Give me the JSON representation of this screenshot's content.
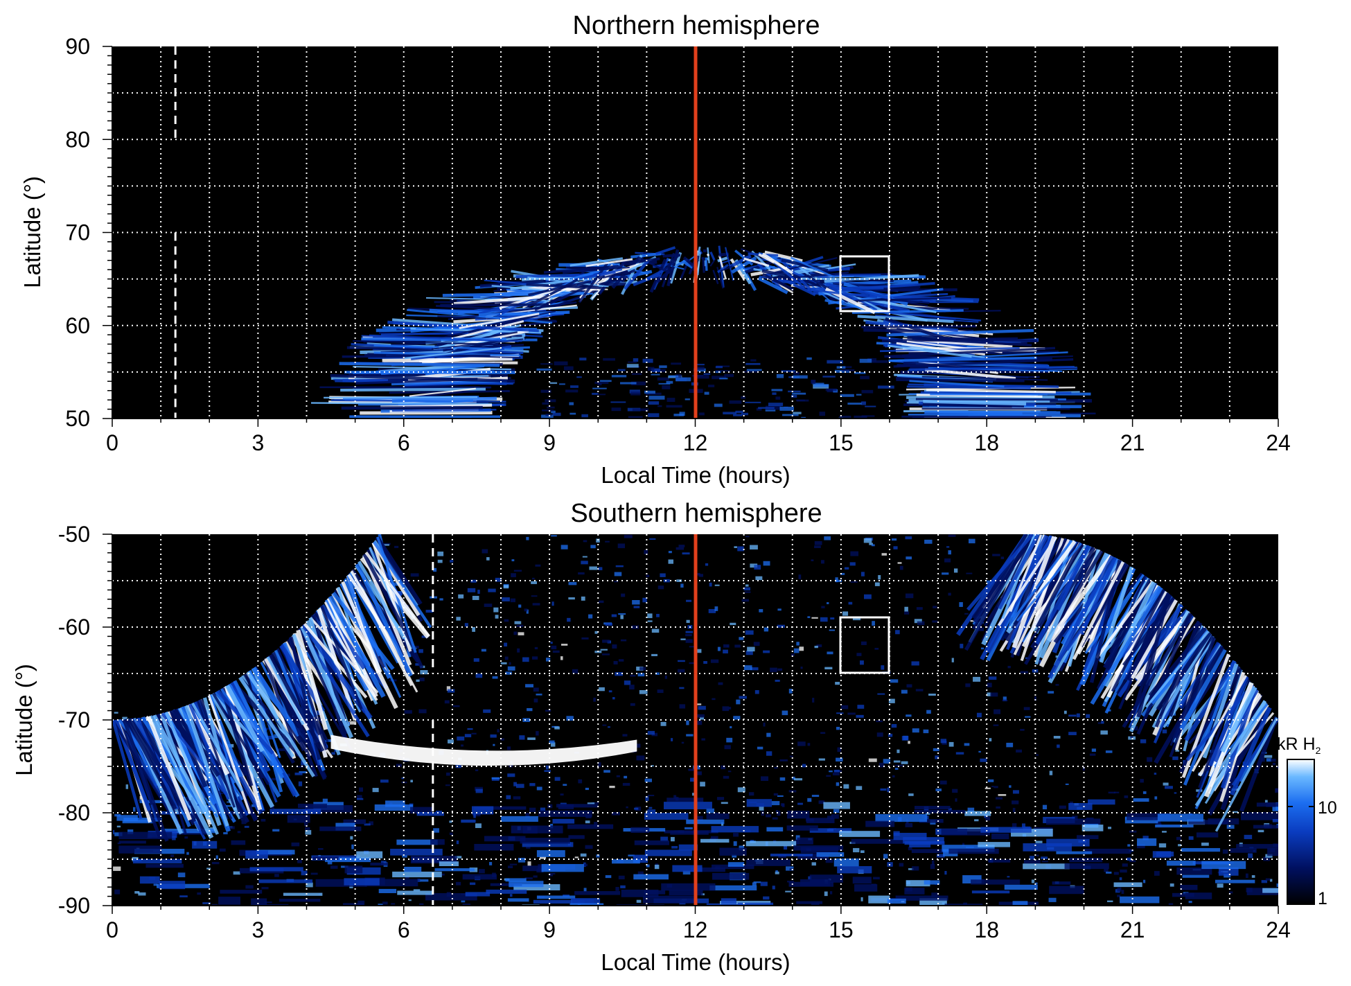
{
  "chart_data": [
    {
      "type": "heatmap",
      "title": "Northern hemisphere",
      "xlabel": "Local Time (hours)",
      "ylabel": "Latitude (°)",
      "xlim": [
        0,
        24
      ],
      "ylim": [
        50,
        90
      ],
      "xticks": [
        "0",
        "3",
        "6",
        "9",
        "12",
        "15",
        "18",
        "21",
        "24"
      ],
      "yticks": [
        "50",
        "60",
        "70",
        "80",
        "90"
      ],
      "grid": true,
      "grid_style": "dotted white",
      "noon_line_lt": 12,
      "noon_line_color": "#e2401c",
      "dashed_line": {
        "lt": 1.3,
        "lat_ranges": [
          [
            50,
            70
          ],
          [
            80,
            90
          ]
        ]
      },
      "box": {
        "lt": [
          15,
          16
        ],
        "lat": [
          61.5,
          67.5
        ]
      },
      "emission_band": {
        "center_lt": 12.2,
        "outer_lat": 67.5,
        "inner_lat": 57,
        "extent_lt": [
          8.4,
          16.4
        ]
      }
    },
    {
      "type": "heatmap",
      "title": "Southern hemisphere",
      "xlabel": "Local Time (hours)",
      "ylabel": "Latitude (°)",
      "xlim": [
        0,
        24
      ],
      "ylim": [
        -90,
        -50
      ],
      "xticks": [
        "0",
        "3",
        "6",
        "9",
        "12",
        "15",
        "18",
        "21",
        "24"
      ],
      "yticks": [
        "-90",
        "-80",
        "-70",
        "-60",
        "-50"
      ],
      "grid": true,
      "grid_style": "dotted white",
      "noon_line_lt": 12,
      "noon_line_color": "#e2401c",
      "dashed_line": {
        "lt": 6.6,
        "lat_ranges": [
          [
            -90,
            -70
          ],
          [
            -65,
            -50
          ]
        ]
      },
      "box": {
        "lt": [
          15,
          16
        ],
        "lat": [
          -65,
          -59
        ]
      },
      "emission_band": {
        "left_lt": [
          0,
          5.6
        ],
        "right_lt": [
          18.8,
          24
        ],
        "bright_feature_lt": [
          4.5,
          10.8
        ],
        "bright_feature_lat": -72.5
      }
    }
  ],
  "colorbar": {
    "label": "kR H",
    "label_sub": "2",
    "ticks": [
      "1",
      "10"
    ],
    "scale": "log",
    "range": [
      1,
      30
    ],
    "colors": [
      "#000000",
      "#001060",
      "#0a3cbf",
      "#1c6ef0",
      "#6ab8ff",
      "#ffffff"
    ]
  }
}
